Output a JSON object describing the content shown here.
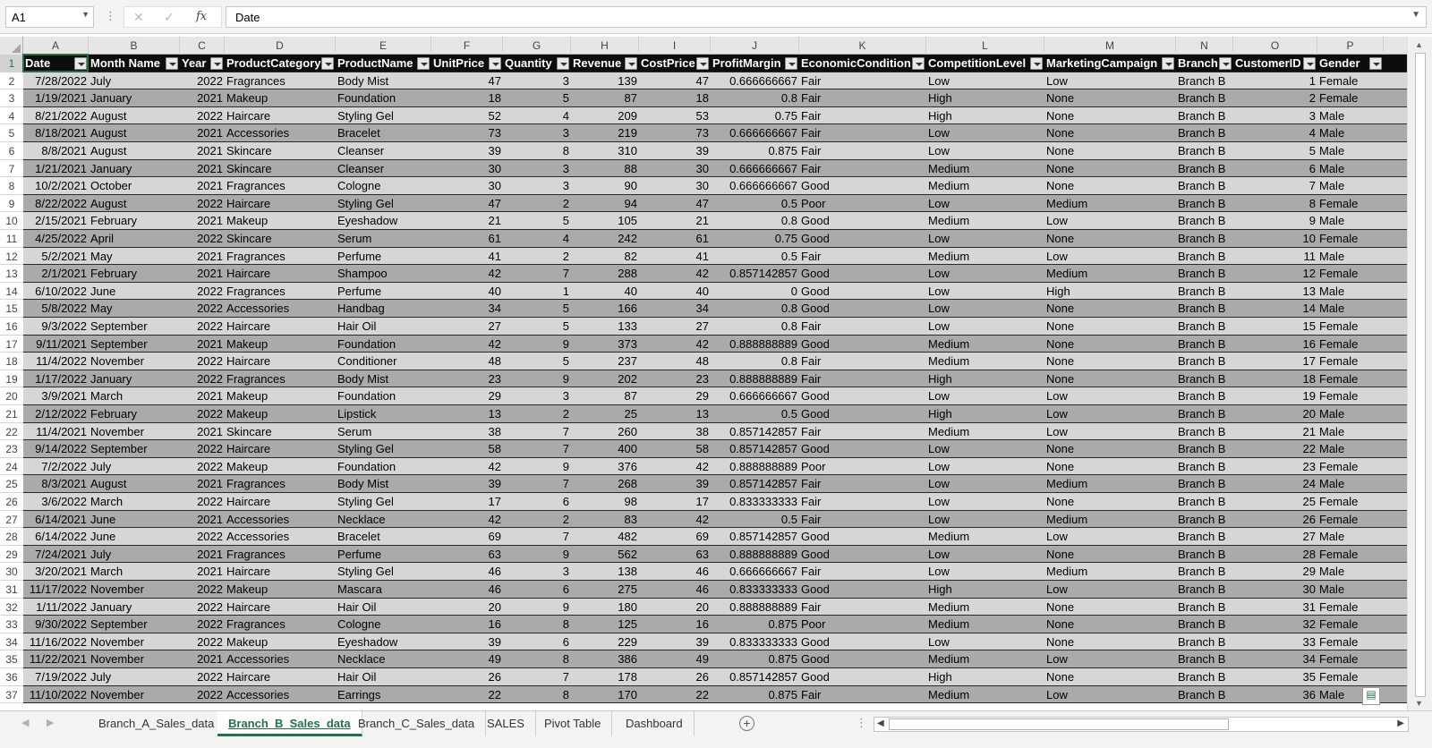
{
  "formula_bar": {
    "name_box": "A1",
    "formula": "Date",
    "cancel_glyph": "✕",
    "enter_glyph": "✓",
    "fx_glyph": "fx"
  },
  "columns": [
    "A",
    "B",
    "C",
    "D",
    "E",
    "F",
    "G",
    "H",
    "I",
    "J",
    "K",
    "L",
    "M",
    "N",
    "O",
    "P"
  ],
  "header_row": [
    "Date",
    "Month Name",
    "Year",
    "ProductCategory",
    "ProductName",
    "UnitPrice",
    "Quantity",
    "Revenue",
    "CostPrice",
    "ProfitMargin",
    "EconomicCondition",
    "CompetitionLevel",
    "MarketingCampaign",
    "Branch",
    "CustomerID",
    "Gender"
  ],
  "row_numbers": [
    "1",
    "2",
    "3",
    "4",
    "5",
    "6",
    "7",
    "8",
    "9",
    "10",
    "11",
    "12",
    "13",
    "14",
    "15",
    "16",
    "17",
    "18",
    "19",
    "20",
    "21",
    "22",
    "23",
    "24",
    "25",
    "26",
    "27",
    "28",
    "29",
    "30",
    "31",
    "32",
    "33",
    "34",
    "35",
    "36",
    "37"
  ],
  "rows": [
    [
      "7/28/2022",
      "July",
      "2022",
      "Fragrances",
      "Body Mist",
      "47",
      "3",
      "139",
      "47",
      "0.666666667",
      "Fair",
      "Low",
      "Low",
      "Branch B",
      "1",
      "Female"
    ],
    [
      "1/19/2021",
      "January",
      "2021",
      "Makeup",
      "Foundation",
      "18",
      "5",
      "87",
      "18",
      "0.8",
      "Fair",
      "High",
      "None",
      "Branch B",
      "2",
      "Female"
    ],
    [
      "8/21/2022",
      "August",
      "2022",
      "Haircare",
      "Styling Gel",
      "52",
      "4",
      "209",
      "53",
      "0.75",
      "Fair",
      "High",
      "None",
      "Branch B",
      "3",
      "Male"
    ],
    [
      "8/18/2021",
      "August",
      "2021",
      "Accessories",
      "Bracelet",
      "73",
      "3",
      "219",
      "73",
      "0.666666667",
      "Fair",
      "Low",
      "None",
      "Branch B",
      "4",
      "Male"
    ],
    [
      "8/8/2021",
      "August",
      "2021",
      "Skincare",
      "Cleanser",
      "39",
      "8",
      "310",
      "39",
      "0.875",
      "Fair",
      "Low",
      "None",
      "Branch B",
      "5",
      "Male"
    ],
    [
      "1/21/2021",
      "January",
      "2021",
      "Skincare",
      "Cleanser",
      "30",
      "3",
      "88",
      "30",
      "0.666666667",
      "Fair",
      "Medium",
      "None",
      "Branch B",
      "6",
      "Male"
    ],
    [
      "10/2/2021",
      "October",
      "2021",
      "Fragrances",
      "Cologne",
      "30",
      "3",
      "90",
      "30",
      "0.666666667",
      "Good",
      "Medium",
      "None",
      "Branch B",
      "7",
      "Male"
    ],
    [
      "8/22/2022",
      "August",
      "2022",
      "Haircare",
      "Styling Gel",
      "47",
      "2",
      "94",
      "47",
      "0.5",
      "Poor",
      "Low",
      "Medium",
      "Branch B",
      "8",
      "Female"
    ],
    [
      "2/15/2021",
      "February",
      "2021",
      "Makeup",
      "Eyeshadow",
      "21",
      "5",
      "105",
      "21",
      "0.8",
      "Good",
      "Medium",
      "Low",
      "Branch B",
      "9",
      "Male"
    ],
    [
      "4/25/2022",
      "April",
      "2022",
      "Skincare",
      "Serum",
      "61",
      "4",
      "242",
      "61",
      "0.75",
      "Good",
      "Low",
      "None",
      "Branch B",
      "10",
      "Female"
    ],
    [
      "5/2/2021",
      "May",
      "2021",
      "Fragrances",
      "Perfume",
      "41",
      "2",
      "82",
      "41",
      "0.5",
      "Fair",
      "Medium",
      "Low",
      "Branch B",
      "11",
      "Male"
    ],
    [
      "2/1/2021",
      "February",
      "2021",
      "Haircare",
      "Shampoo",
      "42",
      "7",
      "288",
      "42",
      "0.857142857",
      "Good",
      "Low",
      "Medium",
      "Branch B",
      "12",
      "Female"
    ],
    [
      "6/10/2022",
      "June",
      "2022",
      "Fragrances",
      "Perfume",
      "40",
      "1",
      "40",
      "40",
      "0",
      "Good",
      "Low",
      "High",
      "Branch B",
      "13",
      "Male"
    ],
    [
      "5/8/2022",
      "May",
      "2022",
      "Accessories",
      "Handbag",
      "34",
      "5",
      "166",
      "34",
      "0.8",
      "Good",
      "Low",
      "None",
      "Branch B",
      "14",
      "Male"
    ],
    [
      "9/3/2022",
      "September",
      "2022",
      "Haircare",
      "Hair Oil",
      "27",
      "5",
      "133",
      "27",
      "0.8",
      "Fair",
      "Low",
      "None",
      "Branch B",
      "15",
      "Female"
    ],
    [
      "9/11/2021",
      "September",
      "2021",
      "Makeup",
      "Foundation",
      "42",
      "9",
      "373",
      "42",
      "0.888888889",
      "Good",
      "Medium",
      "None",
      "Branch B",
      "16",
      "Female"
    ],
    [
      "11/4/2022",
      "November",
      "2022",
      "Haircare",
      "Conditioner",
      "48",
      "5",
      "237",
      "48",
      "0.8",
      "Fair",
      "Medium",
      "None",
      "Branch B",
      "17",
      "Female"
    ],
    [
      "1/17/2022",
      "January",
      "2022",
      "Fragrances",
      "Body Mist",
      "23",
      "9",
      "202",
      "23",
      "0.888888889",
      "Fair",
      "High",
      "None",
      "Branch B",
      "18",
      "Female"
    ],
    [
      "3/9/2021",
      "March",
      "2021",
      "Makeup",
      "Foundation",
      "29",
      "3",
      "87",
      "29",
      "0.666666667",
      "Good",
      "Low",
      "Low",
      "Branch B",
      "19",
      "Female"
    ],
    [
      "2/12/2022",
      "February",
      "2022",
      "Makeup",
      "Lipstick",
      "13",
      "2",
      "25",
      "13",
      "0.5",
      "Good",
      "High",
      "Low",
      "Branch B",
      "20",
      "Male"
    ],
    [
      "11/4/2021",
      "November",
      "2021",
      "Skincare",
      "Serum",
      "38",
      "7",
      "260",
      "38",
      "0.857142857",
      "Fair",
      "Medium",
      "Low",
      "Branch B",
      "21",
      "Male"
    ],
    [
      "9/14/2022",
      "September",
      "2022",
      "Haircare",
      "Styling Gel",
      "58",
      "7",
      "400",
      "58",
      "0.857142857",
      "Good",
      "Low",
      "None",
      "Branch B",
      "22",
      "Male"
    ],
    [
      "7/2/2022",
      "July",
      "2022",
      "Makeup",
      "Foundation",
      "42",
      "9",
      "376",
      "42",
      "0.888888889",
      "Poor",
      "Low",
      "None",
      "Branch B",
      "23",
      "Female"
    ],
    [
      "8/3/2021",
      "August",
      "2021",
      "Fragrances",
      "Body Mist",
      "39",
      "7",
      "268",
      "39",
      "0.857142857",
      "Fair",
      "Low",
      "Medium",
      "Branch B",
      "24",
      "Male"
    ],
    [
      "3/6/2022",
      "March",
      "2022",
      "Haircare",
      "Styling Gel",
      "17",
      "6",
      "98",
      "17",
      "0.833333333",
      "Fair",
      "Low",
      "None",
      "Branch B",
      "25",
      "Female"
    ],
    [
      "6/14/2021",
      "June",
      "2021",
      "Accessories",
      "Necklace",
      "42",
      "2",
      "83",
      "42",
      "0.5",
      "Fair",
      "Low",
      "Medium",
      "Branch B",
      "26",
      "Female"
    ],
    [
      "6/14/2022",
      "June",
      "2022",
      "Accessories",
      "Bracelet",
      "69",
      "7",
      "482",
      "69",
      "0.857142857",
      "Good",
      "Medium",
      "Low",
      "Branch B",
      "27",
      "Male"
    ],
    [
      "7/24/2021",
      "July",
      "2021",
      "Fragrances",
      "Perfume",
      "63",
      "9",
      "562",
      "63",
      "0.888888889",
      "Good",
      "Low",
      "None",
      "Branch B",
      "28",
      "Female"
    ],
    [
      "3/20/2021",
      "March",
      "2021",
      "Haircare",
      "Styling Gel",
      "46",
      "3",
      "138",
      "46",
      "0.666666667",
      "Fair",
      "Low",
      "Medium",
      "Branch B",
      "29",
      "Male"
    ],
    [
      "11/17/2022",
      "November",
      "2022",
      "Makeup",
      "Mascara",
      "46",
      "6",
      "275",
      "46",
      "0.833333333",
      "Good",
      "High",
      "Low",
      "Branch B",
      "30",
      "Male"
    ],
    [
      "1/11/2022",
      "January",
      "2022",
      "Haircare",
      "Hair Oil",
      "20",
      "9",
      "180",
      "20",
      "0.888888889",
      "Fair",
      "Medium",
      "None",
      "Branch B",
      "31",
      "Female"
    ],
    [
      "9/30/2022",
      "September",
      "2022",
      "Fragrances",
      "Cologne",
      "16",
      "8",
      "125",
      "16",
      "0.875",
      "Poor",
      "Medium",
      "None",
      "Branch B",
      "32",
      "Female"
    ],
    [
      "11/16/2022",
      "November",
      "2022",
      "Makeup",
      "Eyeshadow",
      "39",
      "6",
      "229",
      "39",
      "0.833333333",
      "Good",
      "Low",
      "None",
      "Branch B",
      "33",
      "Female"
    ],
    [
      "11/22/2021",
      "November",
      "2021",
      "Accessories",
      "Necklace",
      "49",
      "8",
      "386",
      "49",
      "0.875",
      "Good",
      "Medium",
      "Low",
      "Branch B",
      "34",
      "Female"
    ],
    [
      "7/19/2022",
      "July",
      "2022",
      "Haircare",
      "Hair Oil",
      "26",
      "7",
      "178",
      "26",
      "0.857142857",
      "Good",
      "High",
      "None",
      "Branch B",
      "35",
      "Female"
    ],
    [
      "11/10/2022",
      "November",
      "2022",
      "Accessories",
      "Earrings",
      "22",
      "8",
      "170",
      "22",
      "0.875",
      "Fair",
      "Medium",
      "Low",
      "Branch B",
      "36",
      "Male"
    ]
  ],
  "sheet_tabs": [
    "Branch_A_Sales_data",
    "Branch_B_Sales_data",
    "Branch_C_Sales_data",
    "SALES",
    "Pivot Table",
    "Dashboard"
  ],
  "active_tab": "Branch_B_Sales_data",
  "add_sheet_glyph": "+",
  "colors": {
    "accent": "#217346",
    "header_bg": "#0d0d0d",
    "row_dark": "#aaaaaa",
    "row_light": "#d6d6d6"
  },
  "icons": {
    "cancel": "close-icon",
    "enter": "check-icon",
    "function": "fx-icon",
    "paste_options": "paste-options-icon"
  }
}
